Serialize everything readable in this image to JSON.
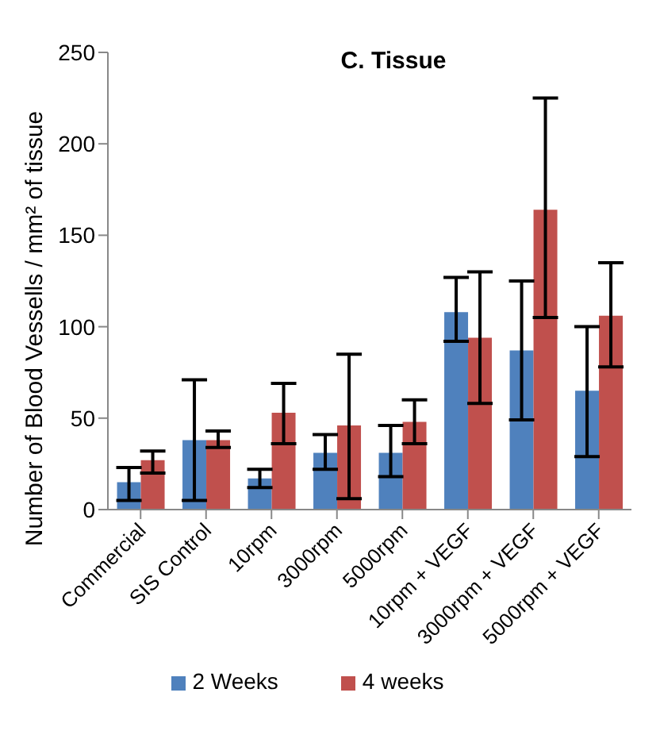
{
  "chart_data": {
    "type": "bar",
    "title": "C. Tissue",
    "ylabel": "Number of Blood Vessells  / mm² of tissue",
    "categories": [
      "Commercial",
      "SIS  Control",
      "10rpm",
      "3000rpm",
      "5000rpm",
      "10rpm + VEGF",
      "3000rpm + VEGF",
      "5000rpm + VEGF"
    ],
    "series": [
      {
        "name": "2 Weeks",
        "color": "#4f81bd",
        "values": [
          15,
          38,
          17,
          31,
          31,
          108,
          87,
          65
        ],
        "errors": [
          [
            5,
            23
          ],
          [
            5,
            71
          ],
          [
            12,
            22
          ],
          [
            22,
            41
          ],
          [
            18,
            46
          ],
          [
            92,
            127
          ],
          [
            49,
            125
          ],
          [
            29,
            100
          ]
        ]
      },
      {
        "name": "4 weeks",
        "color": "#c0504d",
        "values": [
          27,
          38,
          53,
          46,
          48,
          94,
          164,
          106
        ],
        "errors": [
          [
            20,
            32
          ],
          [
            34,
            43
          ],
          [
            36,
            69
          ],
          [
            6,
            85
          ],
          [
            36,
            60
          ],
          [
            58,
            130
          ],
          [
            105,
            225
          ],
          [
            78,
            135
          ]
        ]
      }
    ],
    "ylim": [
      0,
      250
    ],
    "yticks": [
      0,
      50,
      100,
      150,
      200,
      250
    ],
    "grid": false,
    "legend": "bottom"
  }
}
